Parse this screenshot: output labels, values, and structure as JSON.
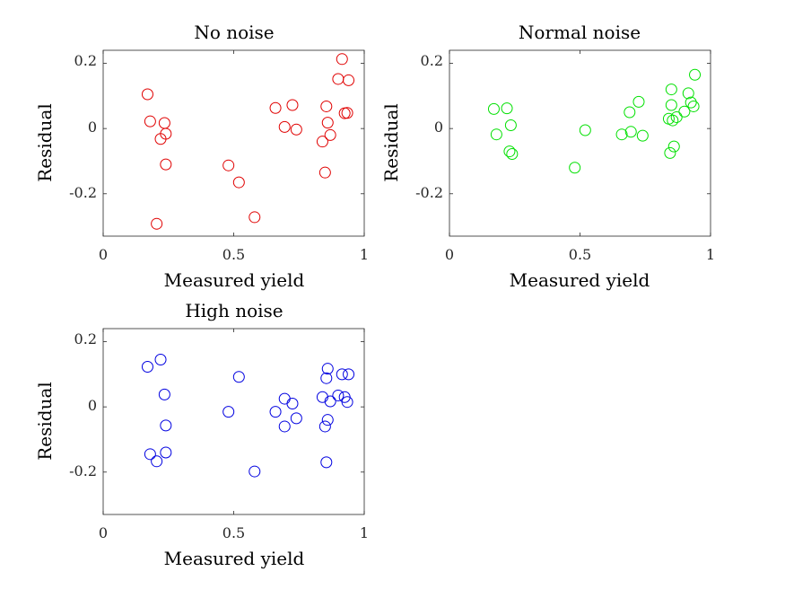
{
  "chart_data": [
    {
      "type": "scatter",
      "title": "No noise",
      "xlabel": "Measured yield",
      "ylabel": "Residual",
      "xlim": [
        0,
        1
      ],
      "ylim": [
        -0.33,
        0.24
      ],
      "xticks": [
        "0",
        "0.5",
        "1"
      ],
      "yticks": [
        "0.2",
        "0",
        "-0.2"
      ],
      "grid": false,
      "marker": "circle-open",
      "color": "#e00000",
      "points": [
        {
          "x": 0.17,
          "y": 0.105
        },
        {
          "x": 0.18,
          "y": 0.022
        },
        {
          "x": 0.205,
          "y": -0.292
        },
        {
          "x": 0.22,
          "y": -0.032
        },
        {
          "x": 0.235,
          "y": 0.017
        },
        {
          "x": 0.24,
          "y": -0.016
        },
        {
          "x": 0.24,
          "y": -0.11
        },
        {
          "x": 0.48,
          "y": -0.113
        },
        {
          "x": 0.52,
          "y": -0.165
        },
        {
          "x": 0.58,
          "y": -0.272
        },
        {
          "x": 0.66,
          "y": 0.063
        },
        {
          "x": 0.695,
          "y": 0.005
        },
        {
          "x": 0.725,
          "y": 0.072
        },
        {
          "x": 0.74,
          "y": -0.003
        },
        {
          "x": 0.84,
          "y": -0.04
        },
        {
          "x": 0.85,
          "y": -0.135
        },
        {
          "x": 0.855,
          "y": 0.068
        },
        {
          "x": 0.86,
          "y": 0.018
        },
        {
          "x": 0.87,
          "y": -0.02
        },
        {
          "x": 0.9,
          "y": 0.152
        },
        {
          "x": 0.915,
          "y": 0.213
        },
        {
          "x": 0.925,
          "y": 0.047
        },
        {
          "x": 0.935,
          "y": 0.048
        },
        {
          "x": 0.94,
          "y": 0.148
        }
      ]
    },
    {
      "type": "scatter",
      "title": "Normal noise",
      "xlabel": "Measured yield",
      "ylabel": "Residual",
      "xlim": [
        0,
        1
      ],
      "ylim": [
        -0.33,
        0.24
      ],
      "xticks": [
        "0",
        "0.5",
        "1"
      ],
      "yticks": [
        "0.2",
        "0",
        "-0.2"
      ],
      "grid": false,
      "marker": "circle-open",
      "color": "#00e000",
      "points": [
        {
          "x": 0.17,
          "y": 0.06
        },
        {
          "x": 0.18,
          "y": -0.018
        },
        {
          "x": 0.22,
          "y": 0.062
        },
        {
          "x": 0.23,
          "y": -0.07
        },
        {
          "x": 0.235,
          "y": 0.01
        },
        {
          "x": 0.24,
          "y": -0.078
        },
        {
          "x": 0.48,
          "y": -0.12
        },
        {
          "x": 0.52,
          "y": -0.005
        },
        {
          "x": 0.66,
          "y": -0.018
        },
        {
          "x": 0.69,
          "y": 0.05
        },
        {
          "x": 0.695,
          "y": -0.01
        },
        {
          "x": 0.725,
          "y": 0.082
        },
        {
          "x": 0.74,
          "y": -0.022
        },
        {
          "x": 0.84,
          "y": 0.03
        },
        {
          "x": 0.845,
          "y": -0.075
        },
        {
          "x": 0.85,
          "y": 0.12
        },
        {
          "x": 0.85,
          "y": 0.072
        },
        {
          "x": 0.855,
          "y": 0.025
        },
        {
          "x": 0.86,
          "y": -0.055
        },
        {
          "x": 0.87,
          "y": 0.035
        },
        {
          "x": 0.9,
          "y": 0.052
        },
        {
          "x": 0.915,
          "y": 0.108
        },
        {
          "x": 0.925,
          "y": 0.08
        },
        {
          "x": 0.935,
          "y": 0.068
        },
        {
          "x": 0.94,
          "y": 0.165
        }
      ]
    },
    {
      "type": "scatter",
      "title": "High noise",
      "xlabel": "Measured yield",
      "ylabel": "Residual",
      "xlim": [
        0,
        1
      ],
      "ylim": [
        -0.33,
        0.24
      ],
      "xticks": [
        "0",
        "0.5",
        "1"
      ],
      "yticks": [
        "0.2",
        "0",
        "-0.2"
      ],
      "grid": false,
      "marker": "circle-open",
      "color": "#0000e0",
      "points": [
        {
          "x": 0.17,
          "y": 0.123
        },
        {
          "x": 0.18,
          "y": -0.145
        },
        {
          "x": 0.205,
          "y": -0.167
        },
        {
          "x": 0.22,
          "y": 0.145
        },
        {
          "x": 0.235,
          "y": 0.038
        },
        {
          "x": 0.24,
          "y": -0.057
        },
        {
          "x": 0.24,
          "y": -0.14
        },
        {
          "x": 0.48,
          "y": -0.015
        },
        {
          "x": 0.52,
          "y": 0.092
        },
        {
          "x": 0.58,
          "y": -0.198
        },
        {
          "x": 0.66,
          "y": -0.015
        },
        {
          "x": 0.695,
          "y": 0.025
        },
        {
          "x": 0.695,
          "y": -0.06
        },
        {
          "x": 0.725,
          "y": 0.01
        },
        {
          "x": 0.74,
          "y": -0.035
        },
        {
          "x": 0.84,
          "y": 0.03
        },
        {
          "x": 0.85,
          "y": -0.06
        },
        {
          "x": 0.855,
          "y": 0.088
        },
        {
          "x": 0.855,
          "y": -0.17
        },
        {
          "x": 0.86,
          "y": 0.117
        },
        {
          "x": 0.86,
          "y": -0.04
        },
        {
          "x": 0.87,
          "y": 0.017
        },
        {
          "x": 0.9,
          "y": 0.035
        },
        {
          "x": 0.915,
          "y": 0.1
        },
        {
          "x": 0.925,
          "y": 0.03
        },
        {
          "x": 0.935,
          "y": 0.015
        },
        {
          "x": 0.94,
          "y": 0.1
        }
      ]
    }
  ]
}
